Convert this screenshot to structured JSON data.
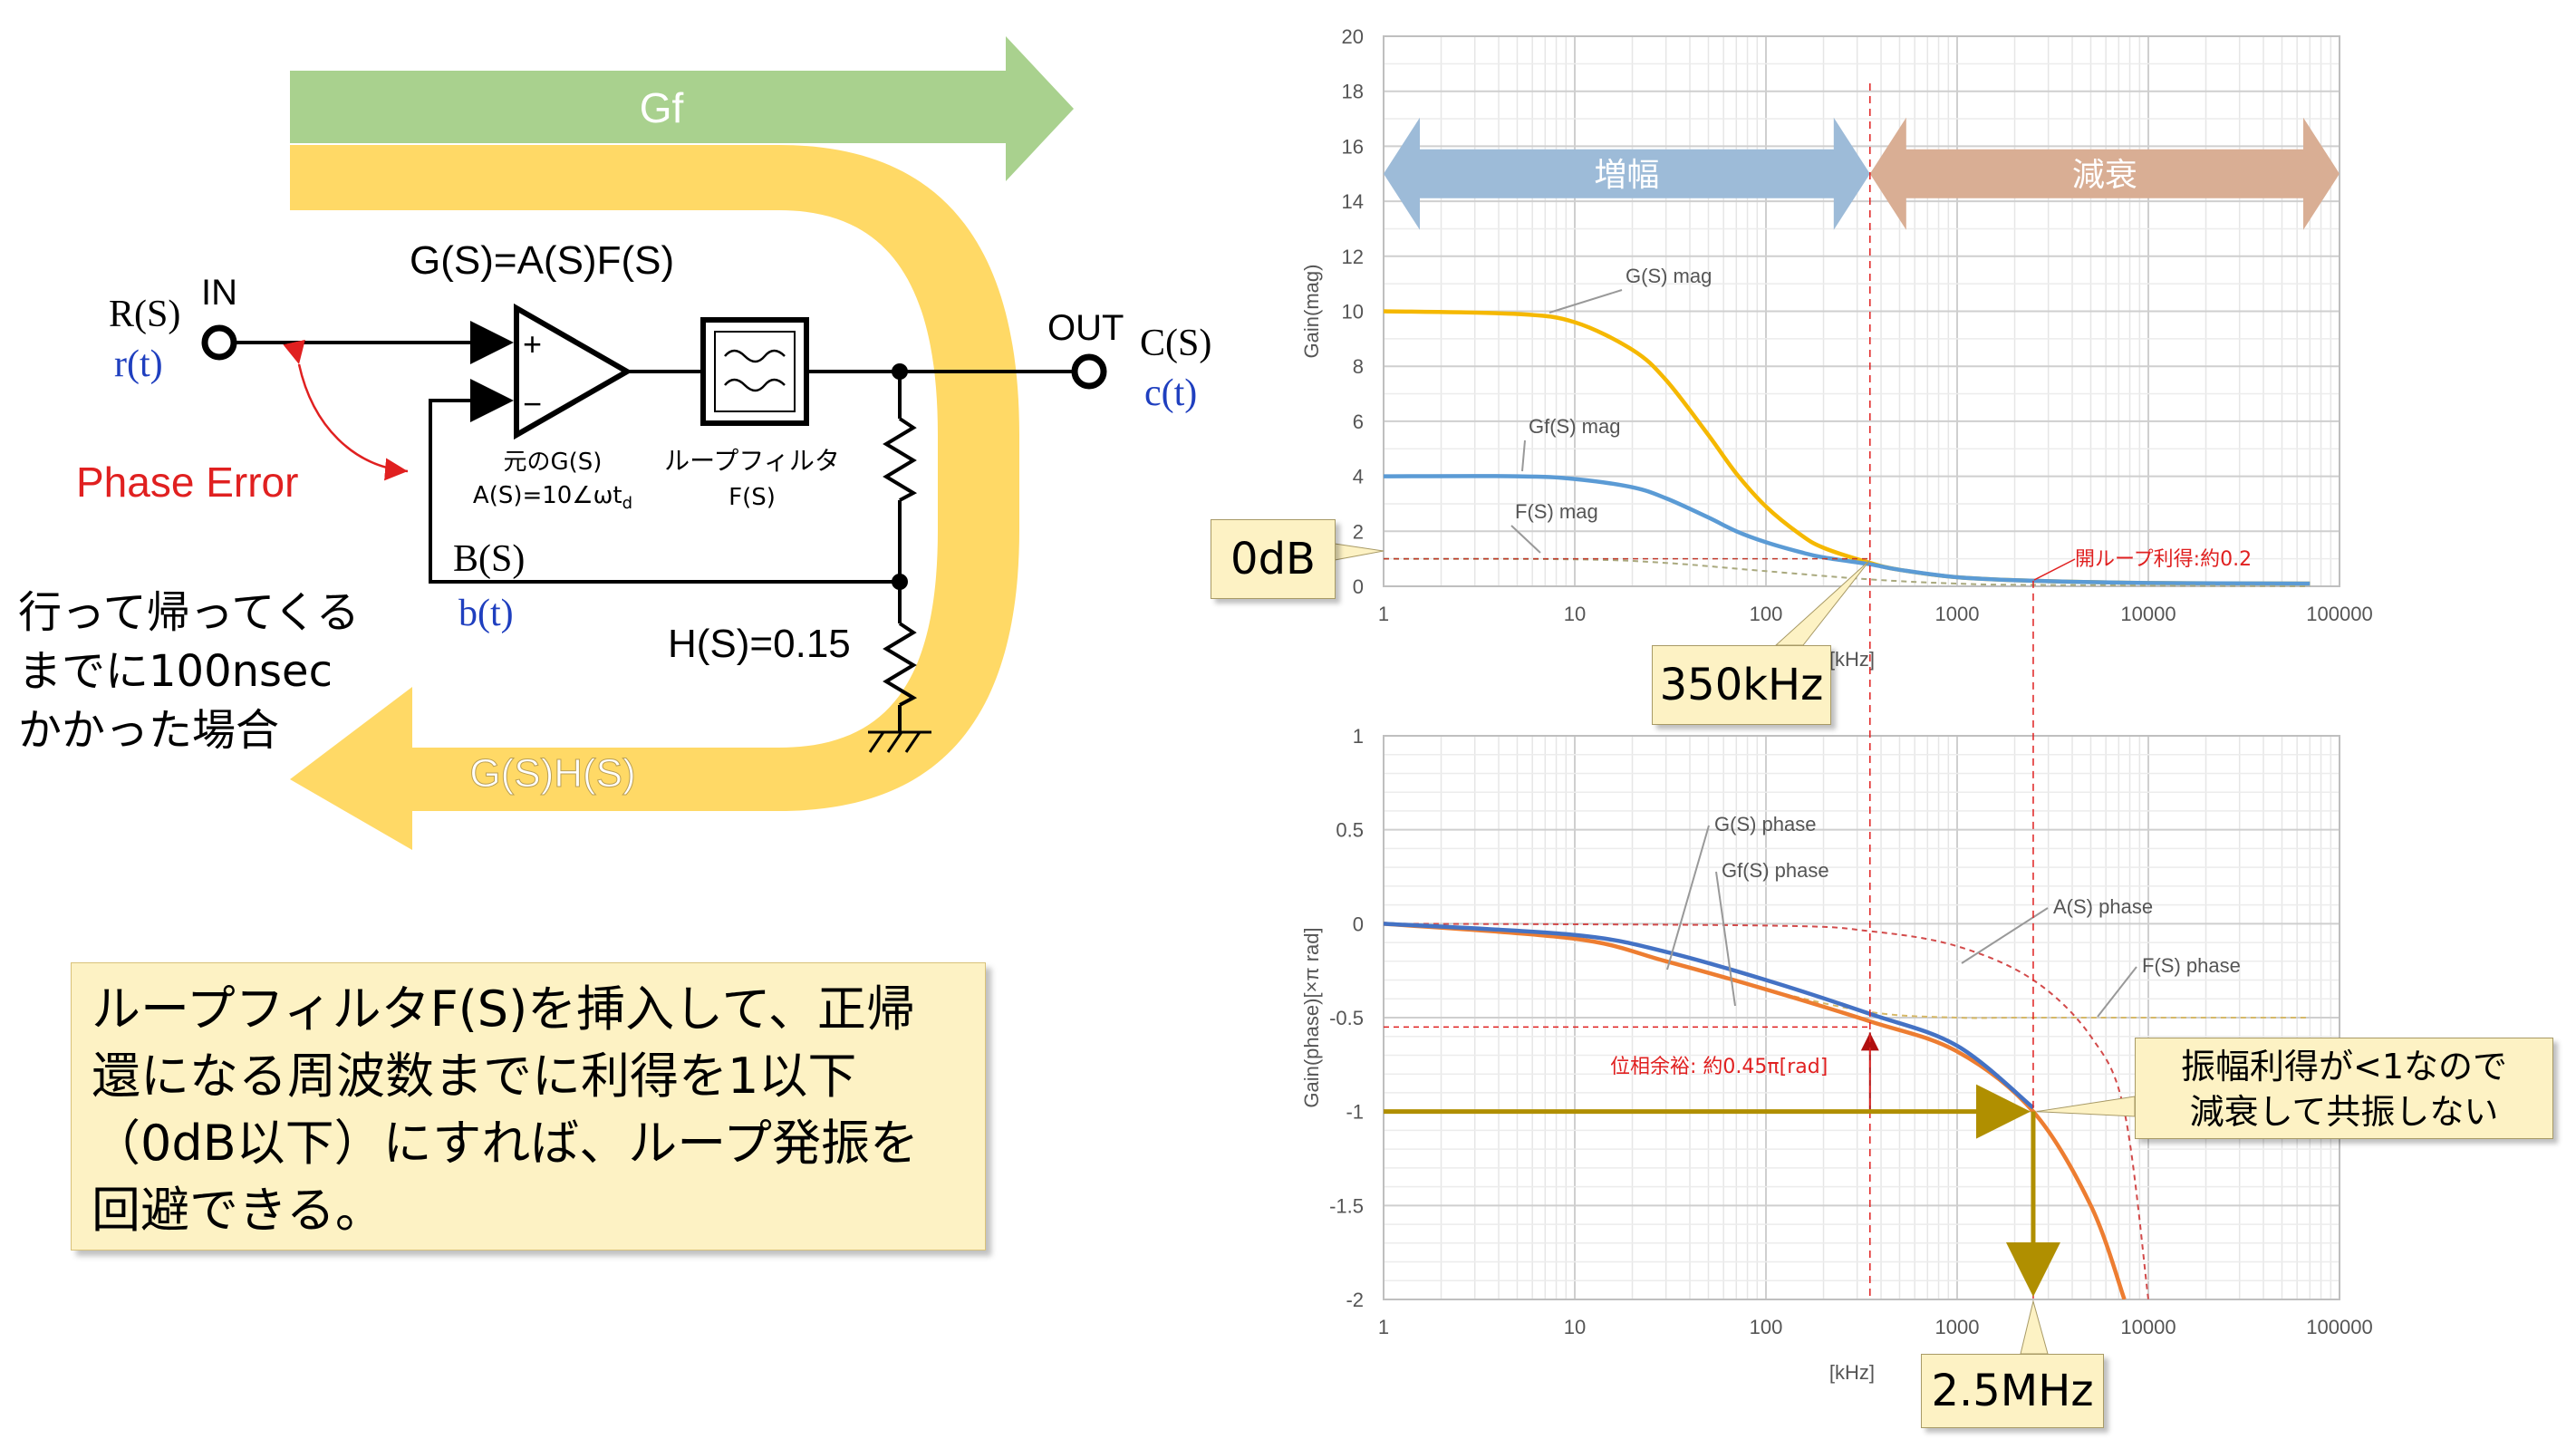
{
  "circuit": {
    "gf_label": "Gf",
    "ghs_label": "G(S)H(S)",
    "gs_eq": "G(S)=A(S)F(S)",
    "in_label": "IN",
    "out_label": "OUT",
    "rs": "R(S)",
    "rt": "r(t)",
    "cs": "C(S)",
    "ct": "c(t)",
    "bs": "B(S)",
    "bt": "b(t)",
    "phase_error": "Phase Error",
    "amp_name": "元のG(S)",
    "amp_formula": "A(S)=10∠ωt",
    "amp_formula_sub": "d",
    "filter_name": "ループフィルタ",
    "filter_fs": "F(S)",
    "hs": "H(S)=0.15",
    "plus": "+",
    "minus": "−",
    "note_lines": [
      "行って帰ってくる",
      "までに100nsec",
      "かかった場合"
    ]
  },
  "bottom_note": {
    "lines": [
      "ループフィルタF(S)を挿入して、正帰",
      "還になる周波数までに利得を1以下",
      "（0dB以下）にすれば、ループ発振を",
      "回避できる。"
    ]
  },
  "callouts": {
    "odb": "0dB",
    "khz350": "350kHz",
    "mhz25": "2.5MHz",
    "no_osc_lines": [
      "振幅利得が<1なので",
      "減衰して共振しない"
    ]
  },
  "colors": {
    "gs": "#f5b800",
    "gf": "#5b9bd5",
    "fs": "#a9a97e",
    "a_phase": "#d24a4a",
    "gs_phase": "#ed7d31",
    "gf_phase": "#4472c4",
    "olive": "#b08f00",
    "red": "#e02020",
    "green_arrow": "#a9d18e",
    "yellow_arrow": "#ffd966",
    "blue_arrow": "#9dbbd8",
    "brown_arrow": "#d9ae94"
  },
  "chart_data": [
    {
      "type": "line",
      "x_scale": "log",
      "xlim": [
        1,
        100000
      ],
      "ylim": [
        0,
        20
      ],
      "ylabel": "Gain(mag)",
      "xlabel": "[kHz]",
      "x_ticks": [
        "1",
        "10",
        "100",
        "1000",
        "10000",
        "100000"
      ],
      "y_ticks": [
        "0",
        "2",
        "4",
        "6",
        "8",
        "10",
        "12",
        "14",
        "16",
        "18",
        "20"
      ],
      "grid": true,
      "regions": [
        {
          "label": "増幅",
          "from": 1,
          "to": 350
        },
        {
          "label": "減衰",
          "from": 350,
          "to": 100000
        }
      ],
      "series": [
        {
          "name": "G(S) mag",
          "x": [
            1,
            5,
            10,
            20,
            30,
            50,
            70,
            100,
            150,
            200,
            350,
            500,
            1000,
            2500,
            10000,
            70000
          ],
          "values": [
            10,
            9.9,
            9.6,
            8.6,
            7.5,
            5.5,
            4.1,
            2.9,
            1.9,
            1.4,
            0.85,
            0.6,
            0.33,
            0.2,
            0.12,
            0.1
          ]
        },
        {
          "name": "Gf(S) mag",
          "x": [
            1,
            5,
            10,
            20,
            30,
            50,
            70,
            100,
            150,
            200,
            350,
            500,
            1000,
            2500,
            10000,
            70000
          ],
          "values": [
            4,
            4,
            3.9,
            3.6,
            3.2,
            2.5,
            2.0,
            1.6,
            1.25,
            1.05,
            0.8,
            0.6,
            0.33,
            0.2,
            0.12,
            0.1
          ]
        },
        {
          "name": "F(S) mag",
          "x": [
            1,
            10,
            30,
            100,
            350,
            1000,
            2500,
            70000
          ],
          "values": [
            1,
            0.98,
            0.85,
            0.55,
            0.25,
            0.1,
            0.05,
            0.0
          ]
        }
      ],
      "annotations": [
        "開ループ利得:約0.2"
      ]
    },
    {
      "type": "line",
      "x_scale": "log",
      "xlim": [
        1,
        100000
      ],
      "ylim": [
        -2,
        1
      ],
      "ylabel": "Gain(phase)[×π rad]",
      "xlabel": "[kHz]",
      "x_ticks": [
        "1",
        "10",
        "100",
        "1000",
        "10000",
        "100000"
      ],
      "y_ticks": [
        "1",
        "0.5",
        "0",
        "-0.5",
        "-1",
        "-1.5",
        "-2"
      ],
      "grid": true,
      "series": [
        {
          "name": "G(S) phase",
          "x": [
            1,
            10,
            30,
            100,
            350,
            1000,
            2500,
            5000,
            7500
          ],
          "values": [
            0,
            -0.08,
            -0.2,
            -0.35,
            -0.52,
            -0.68,
            -1.0,
            -1.5,
            -2.0
          ]
        },
        {
          "name": "Gf(S) phase",
          "x": [
            1,
            10,
            30,
            100,
            350,
            1000,
            2500
          ],
          "values": [
            0,
            -0.06,
            -0.15,
            -0.3,
            -0.48,
            -0.65,
            -0.98
          ]
        },
        {
          "name": "A(S) phase",
          "x": [
            1,
            100,
            350,
            1000,
            2500,
            5000,
            7500,
            10000
          ],
          "values": [
            0,
            -0.01,
            -0.04,
            -0.12,
            -0.3,
            -0.6,
            -1.0,
            -2.0
          ]
        },
        {
          "name": "F(S) phase",
          "x": [
            1,
            10,
            30,
            100,
            350,
            1000,
            2500,
            70000
          ],
          "values": [
            0,
            -0.08,
            -0.2,
            -0.35,
            -0.47,
            -0.5,
            -0.5,
            -0.5
          ]
        }
      ],
      "annotations": [
        "位相余裕: 約0.45π[rad]"
      ]
    }
  ]
}
